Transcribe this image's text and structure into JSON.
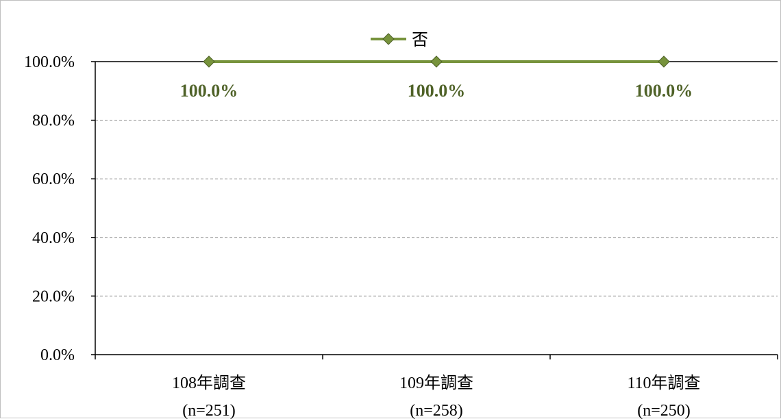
{
  "chart_data": {
    "type": "line",
    "categories": [
      [
        "108年調查",
        "(n=251)"
      ],
      [
        "109年調查",
        "(n=258)"
      ],
      [
        "110年調查",
        "(n=250)"
      ]
    ],
    "series": [
      {
        "name": "否",
        "values": [
          100.0,
          100.0,
          100.0
        ],
        "labels": [
          "100.0%",
          "100.0%",
          "100.0%"
        ],
        "color": "#77933c",
        "marker_color": "#77933c",
        "label_color": "#4f6228"
      }
    ],
    "y_ticks": [
      "0.0%",
      "20.0%",
      "40.0%",
      "60.0%",
      "80.0%",
      "100.0%"
    ],
    "ylim": [
      0,
      100
    ],
    "grid": true,
    "legend_position": "top-center"
  }
}
